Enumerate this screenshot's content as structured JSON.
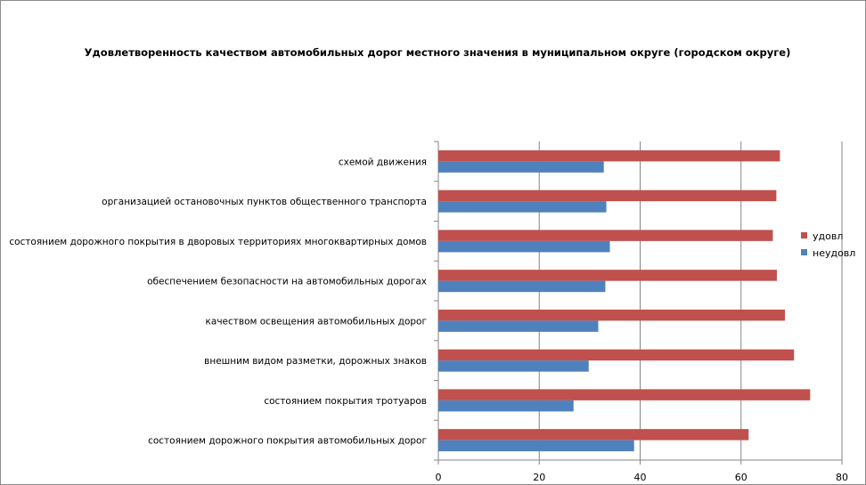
{
  "chart_data": {
    "type": "bar",
    "orientation": "horizontal",
    "title": "Удовлетворенность качеством автомобильных дорог местного значения в муниципальном округе (городском округе)",
    "categories": [
      "состоянием дорожного покрытия автомобильных дорог",
      "состоянием покрытия тротуаров",
      "внешним видом разметки, дорожных знаков",
      "качеством освещения автомобильных дорог",
      "обеспечением безопасности на автомобильных дорогах",
      "состоянием дорожного покрытия в дворовых территориях многоквартирных домов",
      "организацией остановочных пунктов общественного транспорта",
      "схемой движения"
    ],
    "series": [
      {
        "name": "удовл",
        "color": "#c0504d",
        "values": [
          61.5,
          73.7,
          70.5,
          68.7,
          67.1,
          66.3,
          67.0,
          67.7
        ]
      },
      {
        "name": "неудовл",
        "color": "#4f81bd",
        "values": [
          38.8,
          26.8,
          29.8,
          31.7,
          33.1,
          34.0,
          33.3,
          32.8
        ]
      }
    ],
    "xlim": [
      0,
      80
    ],
    "xticks": [
      "0",
      "20",
      "40",
      "60",
      "80"
    ],
    "grid": true,
    "legend": "right"
  }
}
